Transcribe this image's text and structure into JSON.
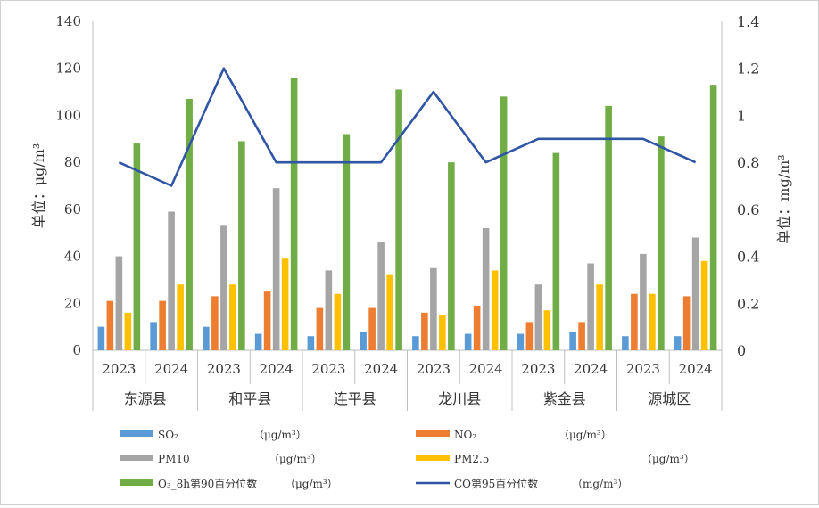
{
  "chart_data": {
    "type": "bar+line",
    "groups": [
      "东源县",
      "和平县",
      "连平县",
      "龙川县",
      "紫金县",
      "源城区"
    ],
    "years": [
      "2023",
      "2024"
    ],
    "categories": [
      "东源县 2023",
      "东源县 2024",
      "和平县 2023",
      "和平县 2024",
      "连平县 2023",
      "连平县 2024",
      "龙川县 2023",
      "龙川县 2024",
      "紫金县 2023",
      "紫金县 2024",
      "源城区 2023",
      "源城区 2024"
    ],
    "ylabel_left": "单位：μg/m³",
    "ylabel_right": "单位：mg/m³",
    "ylim_left": [
      0,
      140
    ],
    "ylim_right": [
      0,
      1.4
    ],
    "yticks_left": [
      "0",
      "20",
      "40",
      "60",
      "80",
      "100",
      "120",
      "140"
    ],
    "yticks_right": [
      "0",
      "0.2",
      "0.4",
      "0.6",
      "0.8",
      "1",
      "1.2",
      "1.4"
    ],
    "grid": false,
    "legend_position": "bottom",
    "series": [
      {
        "name": "SO₂",
        "unit": "（μg/m³）",
        "axis": "left",
        "type": "bar",
        "color": "#5b9bd5",
        "values": [
          10,
          12,
          10,
          7,
          6,
          8,
          6,
          7,
          7,
          8,
          6,
          6
        ]
      },
      {
        "name": "NO₂",
        "unit": "（μg/m³）",
        "axis": "left",
        "type": "bar",
        "color": "#ed7d31",
        "values": [
          21,
          21,
          23,
          25,
          18,
          18,
          16,
          19,
          12,
          12,
          24,
          23
        ]
      },
      {
        "name": "PM10",
        "unit": "（μg/m³）",
        "axis": "left",
        "type": "bar",
        "color": "#a5a5a5",
        "values": [
          40,
          59,
          53,
          69,
          34,
          46,
          35,
          52,
          28,
          37,
          41,
          48
        ]
      },
      {
        "name": "PM2.5",
        "unit": "（μg/m³）",
        "axis": "left",
        "type": "bar",
        "color": "#ffc000",
        "values": [
          16,
          28,
          28,
          39,
          24,
          32,
          15,
          34,
          17,
          28,
          24,
          38
        ]
      },
      {
        "name": "O₃_8h第90百分位数",
        "unit": "（μg/m³）",
        "axis": "left",
        "type": "bar",
        "color": "#70ad47",
        "values": [
          88,
          107,
          89,
          116,
          92,
          111,
          80,
          108,
          84,
          104,
          91,
          113
        ]
      },
      {
        "name": "CO第95百分位数",
        "unit": "（mg/m³）",
        "axis": "right",
        "type": "line",
        "color": "#2f55a4",
        "values": [
          0.8,
          0.7,
          1.2,
          0.8,
          0.8,
          0.8,
          1.1,
          0.8,
          0.9,
          0.9,
          0.9,
          0.8
        ]
      }
    ]
  }
}
